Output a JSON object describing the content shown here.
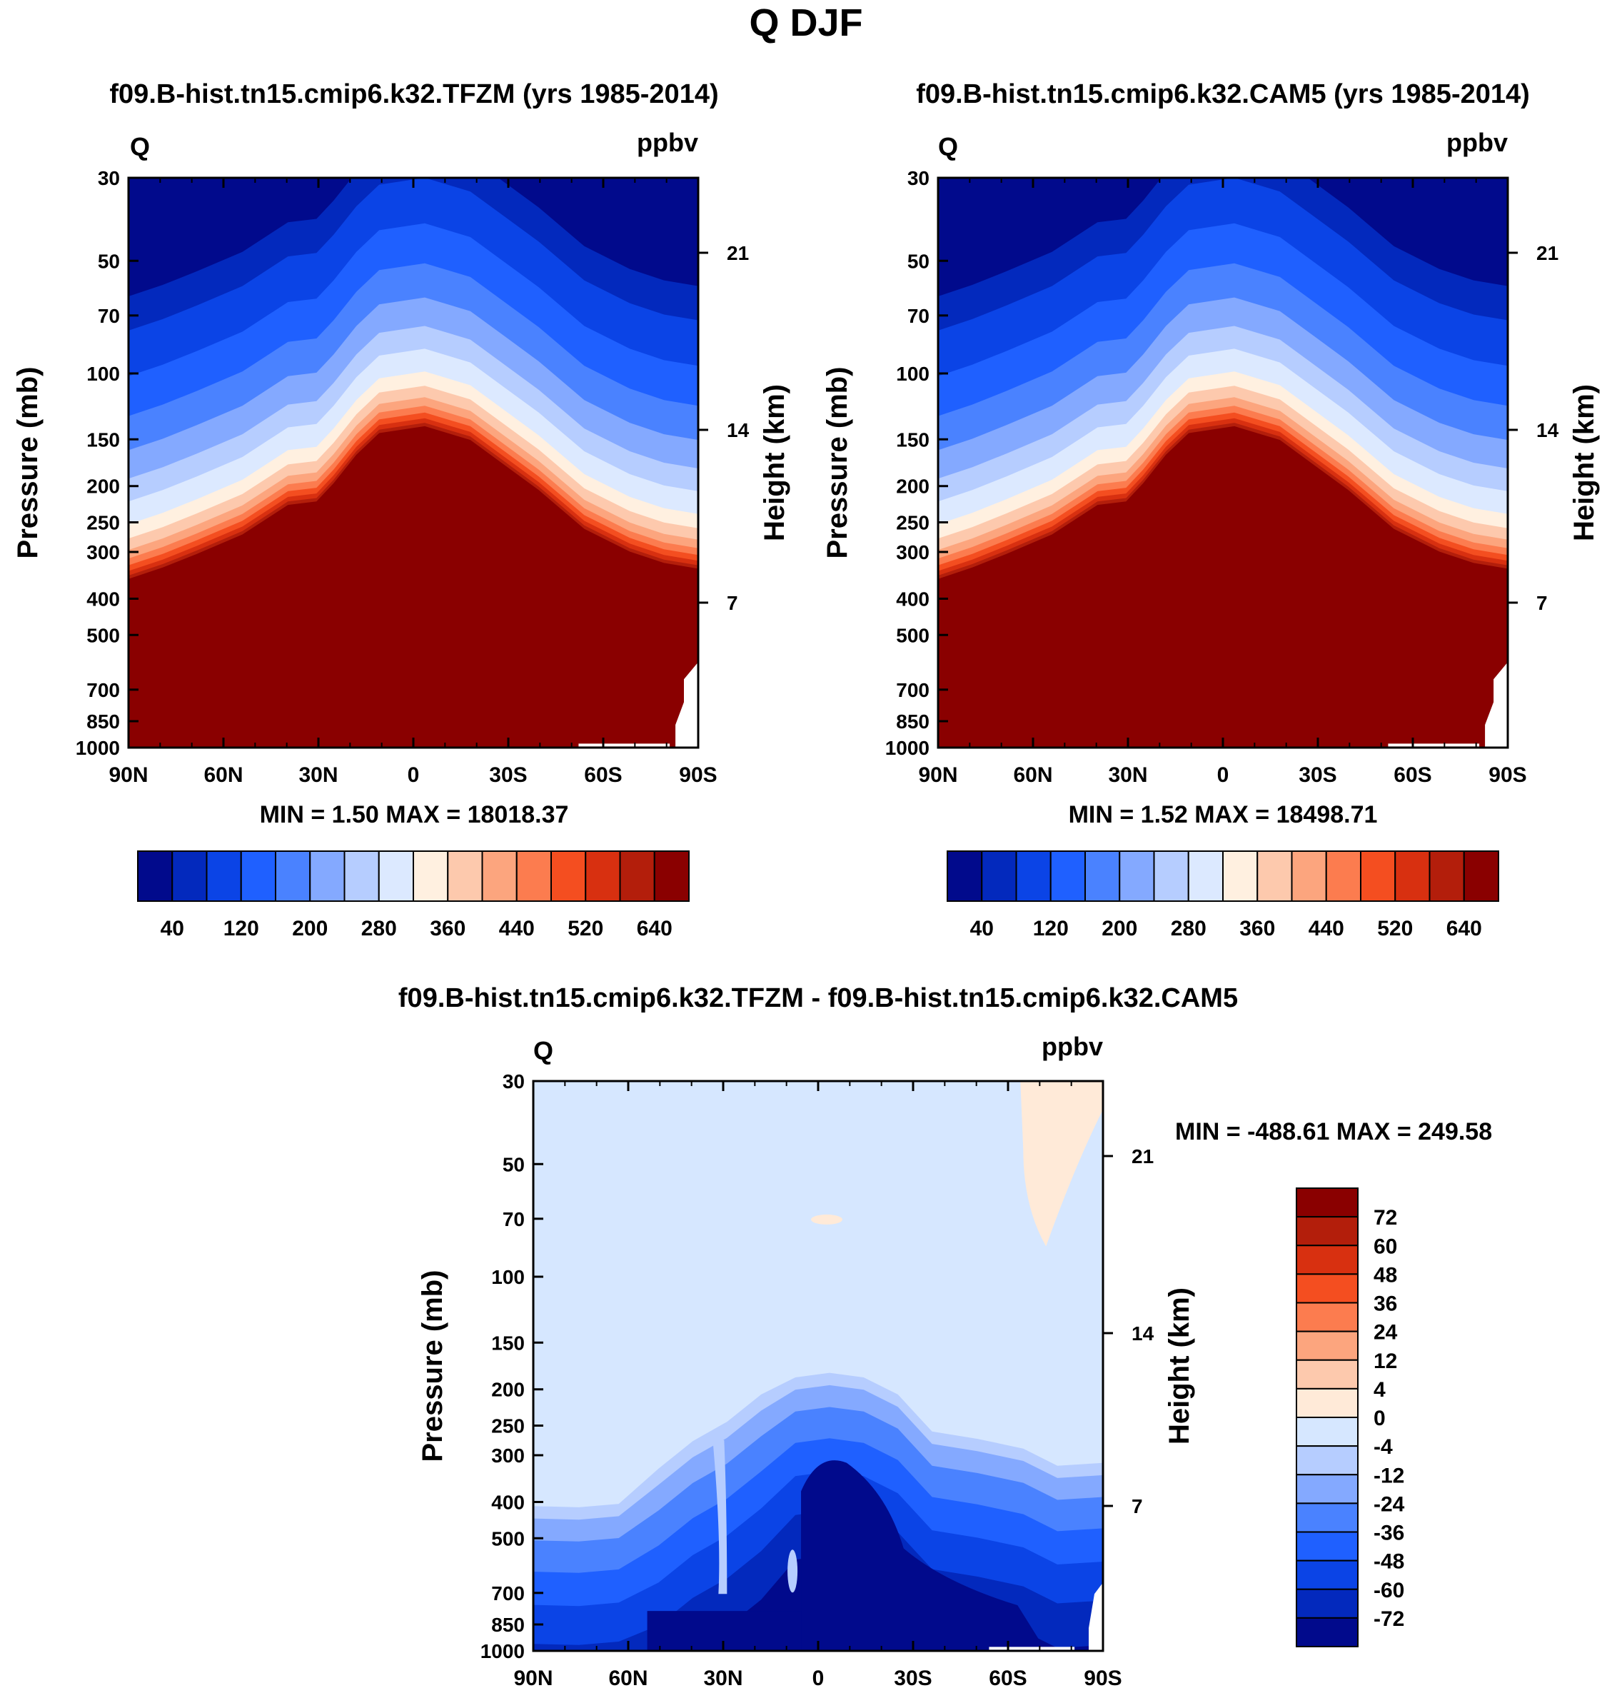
{
  "main_title": "Q DJF",
  "panels": [
    {
      "id": "tfzm",
      "title": "f09.B-hist.tn15.cmip6.k32.TFZM (yrs 1985-2014)",
      "var_label": "Q",
      "units": "ppbv",
      "ylabel_left": "Pressure (mb)",
      "ylabel_right": "Height (km)",
      "minmax": "MIN =   1.50  MAX = 18018.37",
      "colorbar_labels": [
        "40",
        "120",
        "200",
        "280",
        "360",
        "440",
        "520",
        "640"
      ]
    },
    {
      "id": "cam5",
      "title": "f09.B-hist.tn15.cmip6.k32.CAM5 (yrs 1985-2014)",
      "var_label": "Q",
      "units": "ppbv",
      "ylabel_left": "Pressure (mb)",
      "ylabel_right": "Height (km)",
      "minmax": "MIN =   1.52  MAX = 18498.71",
      "colorbar_labels": [
        "40",
        "120",
        "200",
        "280",
        "360",
        "440",
        "520",
        "640"
      ]
    },
    {
      "id": "diff",
      "title": "f09.B-hist.tn15.cmip6.k32.TFZM - f09.B-hist.tn15.cmip6.k32.CAM5",
      "var_label": "Q",
      "units": "ppbv",
      "ylabel_left": "Pressure (mb)",
      "ylabel_right": "Height (km)",
      "minmax": "MIN = -488.61   MAX = 249.58",
      "colorbar_labels": [
        "72",
        "60",
        "48",
        "36",
        "24",
        "12",
        "4",
        "0",
        "-4",
        "-12",
        "-24",
        "-36",
        "-48",
        "-60",
        "-72"
      ]
    }
  ],
  "chart_data": {
    "type": "heatmap",
    "x_ticks": [
      "90N",
      "60N",
      "30N",
      "0",
      "30S",
      "60S",
      "90S"
    ],
    "y_ticks_pressure": [
      "30",
      "50",
      "70",
      "100",
      "150",
      "200",
      "250",
      "300",
      "400",
      "500",
      "700",
      "850",
      "1000"
    ],
    "y_ticks_height": [
      "21",
      "14",
      "7"
    ],
    "ylim_pressure": [
      1000,
      30
    ],
    "y_scale": "log",
    "abs_levels": [
      40,
      120,
      200,
      280,
      360,
      440,
      520,
      640
    ],
    "diff_levels": [
      -72,
      -60,
      -48,
      -36,
      -24,
      -12,
      -4,
      0,
      4,
      12,
      24,
      36,
      48,
      60,
      72
    ],
    "abs_colors": [
      "#010a8c",
      "#0329bd",
      "#0b44e6",
      "#1f60ff",
      "#4a82ff",
      "#84a9ff",
      "#b6cdff",
      "#dce9ff",
      "#fff0e0",
      "#fdc9ad",
      "#fca57e",
      "#fc7c4f",
      "#f44e20",
      "#d83010",
      "#b31e0b",
      "#8a0000"
    ],
    "diff_colors": [
      "#010a8c",
      "#0329bd",
      "#0b44e6",
      "#1f60ff",
      "#4a82ff",
      "#84a9ff",
      "#b6cdff",
      "#d6e7ff",
      "#ffead8",
      "#fdc9ad",
      "#fca57e",
      "#fc7c4f",
      "#f44e20",
      "#d83010",
      "#b31e0b",
      "#8a0000"
    ]
  }
}
